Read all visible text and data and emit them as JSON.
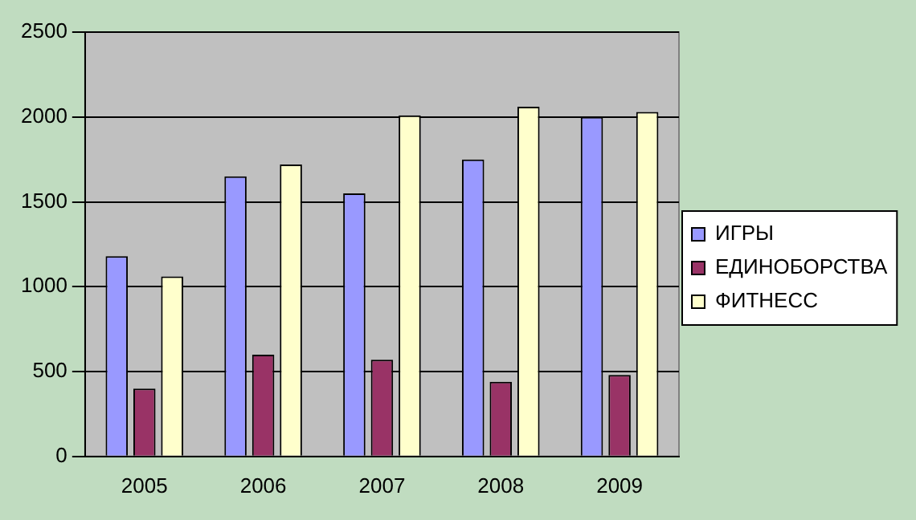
{
  "chart_data": {
    "type": "bar",
    "categories": [
      "2005",
      "2006",
      "2007",
      "2008",
      "2009"
    ],
    "series": [
      {
        "name": "ИГРЫ",
        "color": "#9999ff",
        "values": [
          1180,
          1650,
          1550,
          1750,
          2000
        ]
      },
      {
        "name": "ЕДИНОБОРСТВА",
        "color": "#993366",
        "values": [
          400,
          600,
          570,
          440,
          480
        ]
      },
      {
        "name": "ФИТНЕСС",
        "color": "#ffffcc",
        "values": [
          1060,
          1720,
          2010,
          2060,
          2030
        ]
      }
    ],
    "ylim": [
      0,
      2500
    ],
    "yticks": [
      0,
      500,
      1000,
      1500,
      2000,
      2500
    ],
    "grid": "y",
    "legend": "right"
  }
}
